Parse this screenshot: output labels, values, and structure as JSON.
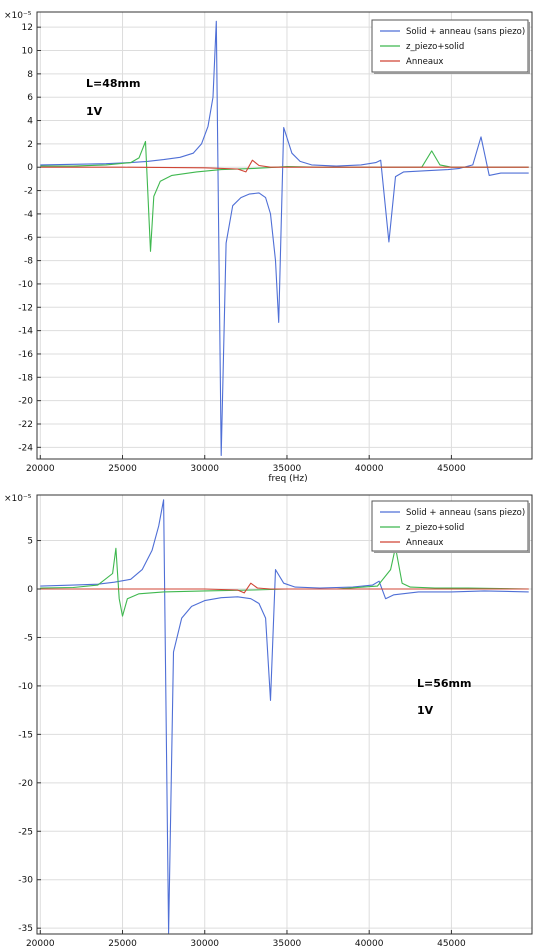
{
  "chart_data": [
    {
      "type": "line",
      "title": "",
      "xlabel": "freq (Hz)",
      "ylabel": "",
      "y_exponent_label": "×10⁻⁵",
      "xlim": [
        19800,
        49900
      ],
      "ylim": [
        -25.0,
        13.3
      ],
      "x_ticks": [
        20000,
        25000,
        30000,
        35000,
        40000,
        45000
      ],
      "y_ticks": [
        12,
        10,
        8,
        6,
        4,
        2,
        0,
        -2,
        -4,
        -6,
        -8,
        -10,
        -12,
        -14,
        -16,
        -18,
        -20,
        -22,
        -24
      ],
      "grid": true,
      "legend_position": "top-right",
      "annotations": [
        "L=48mm",
        "1V"
      ],
      "series": [
        {
          "name": "Solid + anneau (sans piezo)",
          "color": "#4f6fd6",
          "points": [
            [
              20000,
              0.2
            ],
            [
              22000,
              0.25
            ],
            [
              24000,
              0.3
            ],
            [
              25500,
              0.4
            ],
            [
              26500,
              0.5
            ],
            [
              27500,
              0.65
            ],
            [
              28500,
              0.85
            ],
            [
              29300,
              1.2
            ],
            [
              29800,
              2.0
            ],
            [
              30200,
              3.5
            ],
            [
              30500,
              6.0
            ],
            [
              30700,
              12.5
            ],
            [
              31000,
              -24.7
            ],
            [
              31300,
              -6.5
            ],
            [
              31700,
              -3.3
            ],
            [
              32200,
              -2.6
            ],
            [
              32700,
              -2.3
            ],
            [
              33300,
              -2.2
            ],
            [
              33700,
              -2.6
            ],
            [
              34000,
              -4.0
            ],
            [
              34300,
              -8.0
            ],
            [
              34500,
              -13.3
            ],
            [
              34800,
              3.4
            ],
            [
              35300,
              1.2
            ],
            [
              35800,
              0.5
            ],
            [
              36500,
              0.2
            ],
            [
              38000,
              0.1
            ],
            [
              39500,
              0.2
            ],
            [
              40400,
              0.4
            ],
            [
              40700,
              0.6
            ],
            [
              41200,
              -6.4
            ],
            [
              41600,
              -0.8
            ],
            [
              42100,
              -0.4
            ],
            [
              43500,
              -0.3
            ],
            [
              44800,
              -0.2
            ],
            [
              45500,
              -0.1
            ],
            [
              46300,
              0.2
            ],
            [
              46800,
              2.6
            ],
            [
              47300,
              -0.7
            ],
            [
              48000,
              -0.5
            ],
            [
              49700,
              -0.5
            ]
          ]
        },
        {
          "name": "z_piezo+solid",
          "color": "#3fb84f",
          "points": [
            [
              20000,
              0.1
            ],
            [
              22000,
              0.1
            ],
            [
              24000,
              0.2
            ],
            [
              25500,
              0.4
            ],
            [
              26000,
              0.8
            ],
            [
              26400,
              2.2
            ],
            [
              26500,
              -1.0
            ],
            [
              26700,
              -7.2
            ],
            [
              26900,
              -2.5
            ],
            [
              27300,
              -1.2
            ],
            [
              28000,
              -0.7
            ],
            [
              29500,
              -0.4
            ],
            [
              31000,
              -0.2
            ],
            [
              33000,
              -0.1
            ],
            [
              35000,
              0.05
            ],
            [
              37000,
              0.0
            ],
            [
              40000,
              0.0
            ],
            [
              42000,
              0.0
            ],
            [
              43200,
              0.0
            ],
            [
              43800,
              1.4
            ],
            [
              44300,
              0.2
            ],
            [
              45000,
              0.0
            ],
            [
              49700,
              0.0
            ]
          ]
        },
        {
          "name": "Anneaux",
          "color": "#d04535",
          "points": [
            [
              20000,
              0.0
            ],
            [
              25000,
              0.0
            ],
            [
              30000,
              -0.05
            ],
            [
              32000,
              -0.15
            ],
            [
              32500,
              -0.4
            ],
            [
              32900,
              0.6
            ],
            [
              33300,
              0.15
            ],
            [
              34000,
              0.0
            ],
            [
              40000,
              0.0
            ],
            [
              45000,
              0.0
            ],
            [
              49700,
              0.0
            ]
          ]
        }
      ]
    },
    {
      "type": "line",
      "title": "",
      "xlabel": "",
      "ylabel": "",
      "y_exponent_label": "×10⁻⁵",
      "xlim": [
        19800,
        49900
      ],
      "ylim": [
        -35.6,
        9.7
      ],
      "x_ticks": [
        20000,
        25000,
        30000,
        35000,
        40000,
        45000
      ],
      "y_ticks": [
        5,
        0,
        -5,
        -10,
        -15,
        -20,
        -25,
        -30,
        -35
      ],
      "grid": true,
      "legend_position": "top-right",
      "annotations": [
        "L=56mm",
        "1V"
      ],
      "series": [
        {
          "name": "Solid + anneau (sans piezo)",
          "color": "#4f6fd6",
          "points": [
            [
              20000,
              0.3
            ],
            [
              22000,
              0.4
            ],
            [
              23500,
              0.5
            ],
            [
              24500,
              0.7
            ],
            [
              25500,
              1.0
            ],
            [
              26200,
              2.0
            ],
            [
              26800,
              4.0
            ],
            [
              27200,
              6.5
            ],
            [
              27500,
              9.2
            ],
            [
              27800,
              -35.5
            ],
            [
              28100,
              -6.5
            ],
            [
              28600,
              -3.0
            ],
            [
              29200,
              -1.8
            ],
            [
              30000,
              -1.2
            ],
            [
              31000,
              -0.9
            ],
            [
              32000,
              -0.8
            ],
            [
              32800,
              -1.0
            ],
            [
              33300,
              -1.5
            ],
            [
              33700,
              -3.0
            ],
            [
              34000,
              -11.5
            ],
            [
              34300,
              2.0
            ],
            [
              34800,
              0.6
            ],
            [
              35500,
              0.2
            ],
            [
              37000,
              0.1
            ],
            [
              39000,
              0.2
            ],
            [
              40200,
              0.4
            ],
            [
              40600,
              0.8
            ],
            [
              41000,
              -1.0
            ],
            [
              41500,
              -0.6
            ],
            [
              43000,
              -0.3
            ],
            [
              45000,
              -0.3
            ],
            [
              47000,
              -0.2
            ],
            [
              49700,
              -0.3
            ]
          ]
        },
        {
          "name": "z_piezo+solid",
          "color": "#3fb84f",
          "points": [
            [
              20000,
              0.1
            ],
            [
              22000,
              0.15
            ],
            [
              23500,
              0.4
            ],
            [
              24400,
              1.6
            ],
            [
              24600,
              4.2
            ],
            [
              24800,
              -1.0
            ],
            [
              25000,
              -2.8
            ],
            [
              25300,
              -1.0
            ],
            [
              26000,
              -0.5
            ],
            [
              27500,
              -0.3
            ],
            [
              30000,
              -0.2
            ],
            [
              33000,
              -0.1
            ],
            [
              35000,
              0.0
            ],
            [
              38000,
              0.0
            ],
            [
              40500,
              0.3
            ],
            [
              41300,
              2.0
            ],
            [
              41600,
              4.3
            ],
            [
              42000,
              0.6
            ],
            [
              42500,
              0.2
            ],
            [
              44000,
              0.1
            ],
            [
              46000,
              0.1
            ],
            [
              49700,
              0.0
            ]
          ]
        },
        {
          "name": "Anneaux",
          "color": "#d04535",
          "points": [
            [
              20000,
              0.0
            ],
            [
              25000,
              0.0
            ],
            [
              30000,
              0.0
            ],
            [
              32000,
              -0.1
            ],
            [
              32400,
              -0.4
            ],
            [
              32800,
              0.6
            ],
            [
              33200,
              0.1
            ],
            [
              34000,
              0.0
            ],
            [
              40000,
              0.0
            ],
            [
              45000,
              0.0
            ],
            [
              49700,
              0.0
            ]
          ]
        }
      ]
    }
  ]
}
